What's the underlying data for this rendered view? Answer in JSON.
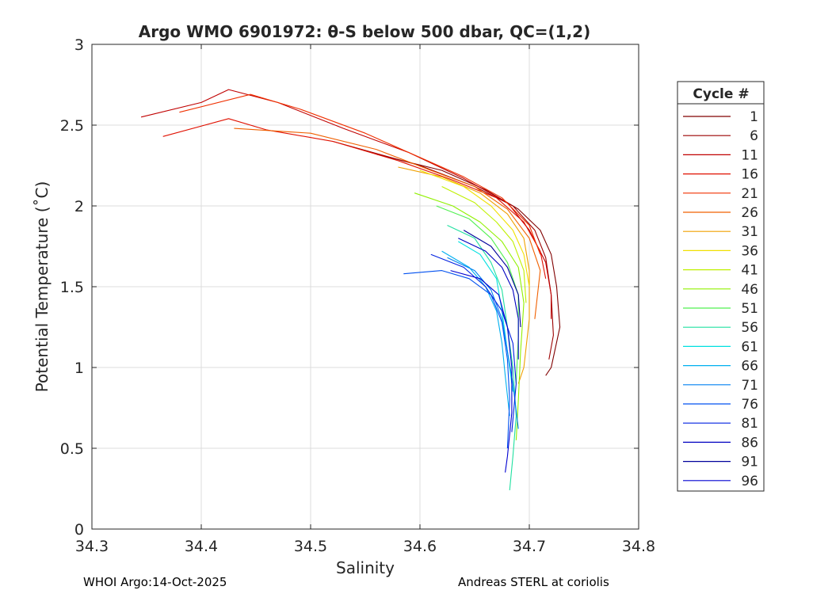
{
  "chart_data": {
    "type": "line",
    "title": "Argo WMO 6901972: θ-S below 500 dbar,  QC=(1,2)",
    "xlabel": "Salinity",
    "ylabel": "Potential Temperature (˚C)",
    "xlim": [
      34.3,
      34.8
    ],
    "ylim": [
      0,
      3
    ],
    "xticks": [
      "34.3",
      "34.4",
      "34.5",
      "34.6",
      "34.7",
      "34.8"
    ],
    "yticks": [
      "0",
      "0.5",
      "1",
      "1.5",
      "2",
      "2.5",
      "3"
    ],
    "grid": true,
    "legend": {
      "title": "Cycle #",
      "placement": "outside-right",
      "entries": [
        {
          "label": "1",
          "color": "#800000"
        },
        {
          "label": "6",
          "color": "#9b0000"
        },
        {
          "label": "11",
          "color": "#c00000"
        },
        {
          "label": "16",
          "color": "#e01000"
        },
        {
          "label": "21",
          "color": "#f03000"
        },
        {
          "label": "26",
          "color": "#f06000"
        },
        {
          "label": "31",
          "color": "#f0a000"
        },
        {
          "label": "36",
          "color": "#f0e000"
        },
        {
          "label": "41",
          "color": "#c0f000"
        },
        {
          "label": "46",
          "color": "#90f000"
        },
        {
          "label": "51",
          "color": "#50f050"
        },
        {
          "label": "56",
          "color": "#20e0a0"
        },
        {
          "label": "61",
          "color": "#00e0e0"
        },
        {
          "label": "66",
          "color": "#00b0f0"
        },
        {
          "label": "71",
          "color": "#0080f0"
        },
        {
          "label": "76",
          "color": "#0050f0"
        },
        {
          "label": "81",
          "color": "#0020e0"
        },
        {
          "label": "86",
          "color": "#0000c0"
        },
        {
          "label": "91",
          "color": "#00009b"
        },
        {
          "label": "96",
          "color": "#0000d0"
        }
      ]
    },
    "series": [
      {
        "name": "1",
        "color": "#800000",
        "points": [
          [
            34.56,
            2.32
          ],
          [
            34.62,
            2.22
          ],
          [
            34.66,
            2.1
          ],
          [
            34.69,
            1.98
          ],
          [
            34.71,
            1.85
          ],
          [
            34.72,
            1.7
          ],
          [
            34.725,
            1.5
          ],
          [
            34.728,
            1.25
          ],
          [
            34.72,
            1.0
          ],
          [
            34.715,
            0.95
          ]
        ]
      },
      {
        "name": "6",
        "color": "#9b0000",
        "points": [
          [
            34.52,
            2.4
          ],
          [
            34.6,
            2.25
          ],
          [
            34.65,
            2.12
          ],
          [
            34.685,
            2.0
          ],
          [
            34.705,
            1.85
          ],
          [
            34.715,
            1.68
          ],
          [
            34.72,
            1.45
          ],
          [
            34.722,
            1.2
          ],
          [
            34.718,
            1.05
          ]
        ]
      },
      {
        "name": "11",
        "color": "#c00000",
        "points": [
          [
            34.345,
            2.55
          ],
          [
            34.4,
            2.64
          ],
          [
            34.425,
            2.72
          ],
          [
            34.47,
            2.64
          ],
          [
            34.53,
            2.48
          ],
          [
            34.59,
            2.33
          ],
          [
            34.64,
            2.17
          ],
          [
            34.68,
            2.02
          ],
          [
            34.7,
            1.85
          ],
          [
            34.715,
            1.65
          ],
          [
            34.72,
            1.45
          ],
          [
            34.72,
            1.3
          ]
        ]
      },
      {
        "name": "16",
        "color": "#e01000",
        "points": [
          [
            34.365,
            2.43
          ],
          [
            34.425,
            2.54
          ],
          [
            34.46,
            2.47
          ],
          [
            34.52,
            2.4
          ],
          [
            34.58,
            2.28
          ],
          [
            34.63,
            2.16
          ],
          [
            34.67,
            2.05
          ],
          [
            34.695,
            1.9
          ],
          [
            34.71,
            1.72
          ],
          [
            34.715,
            1.55
          ]
        ]
      },
      {
        "name": "21",
        "color": "#f03000",
        "points": [
          [
            34.38,
            2.58
          ],
          [
            34.445,
            2.69
          ],
          [
            34.49,
            2.6
          ],
          [
            34.55,
            2.45
          ],
          [
            34.6,
            2.3
          ],
          [
            34.64,
            2.18
          ],
          [
            34.675,
            2.05
          ],
          [
            34.7,
            1.88
          ],
          [
            34.71,
            1.7
          ]
        ]
      },
      {
        "name": "26",
        "color": "#f06000",
        "points": [
          [
            34.43,
            2.48
          ],
          [
            34.5,
            2.45
          ],
          [
            34.56,
            2.35
          ],
          [
            34.61,
            2.22
          ],
          [
            34.65,
            2.12
          ],
          [
            34.68,
            1.98
          ],
          [
            34.7,
            1.8
          ],
          [
            34.71,
            1.6
          ],
          [
            34.705,
            1.3
          ]
        ]
      },
      {
        "name": "31",
        "color": "#f0a000",
        "points": [
          [
            34.58,
            2.24
          ],
          [
            34.62,
            2.18
          ],
          [
            34.655,
            2.08
          ],
          [
            34.68,
            1.95
          ],
          [
            34.695,
            1.8
          ],
          [
            34.7,
            1.6
          ],
          [
            34.7,
            1.3
          ],
          [
            34.695,
            1.0
          ],
          [
            34.69,
            0.9
          ]
        ]
      },
      {
        "name": "36",
        "color": "#f0e000",
        "points": [
          [
            34.6,
            2.22
          ],
          [
            34.64,
            2.12
          ],
          [
            34.665,
            2.0
          ],
          [
            34.685,
            1.85
          ],
          [
            34.695,
            1.7
          ],
          [
            34.7,
            1.5
          ]
        ]
      },
      {
        "name": "41",
        "color": "#c0f000",
        "points": [
          [
            34.62,
            2.12
          ],
          [
            34.65,
            2.02
          ],
          [
            34.67,
            1.9
          ],
          [
            34.685,
            1.78
          ],
          [
            34.695,
            1.6
          ],
          [
            34.697,
            1.4
          ]
        ]
      },
      {
        "name": "46",
        "color": "#90f000",
        "points": [
          [
            34.595,
            2.08
          ],
          [
            34.63,
            2.0
          ],
          [
            34.655,
            1.9
          ],
          [
            34.675,
            1.78
          ],
          [
            34.69,
            1.62
          ],
          [
            34.695,
            1.4
          ],
          [
            34.692,
            1.1
          ],
          [
            34.69,
            0.8
          ],
          [
            34.688,
            0.55
          ]
        ]
      },
      {
        "name": "51",
        "color": "#50f050",
        "points": [
          [
            34.615,
            2.0
          ],
          [
            34.645,
            1.92
          ],
          [
            34.665,
            1.8
          ],
          [
            34.68,
            1.65
          ],
          [
            34.69,
            1.45
          ],
          [
            34.69,
            1.2
          ],
          [
            34.688,
            0.9
          ]
        ]
      },
      {
        "name": "56",
        "color": "#20e0a0",
        "points": [
          [
            34.625,
            1.88
          ],
          [
            34.65,
            1.8
          ],
          [
            34.665,
            1.65
          ],
          [
            34.675,
            1.48
          ],
          [
            34.68,
            1.25
          ],
          [
            34.685,
            1.0
          ],
          [
            34.688,
            0.7
          ],
          [
            34.685,
            0.45
          ],
          [
            34.682,
            0.24
          ]
        ]
      },
      {
        "name": "61",
        "color": "#00e0e0",
        "points": [
          [
            34.635,
            1.78
          ],
          [
            34.655,
            1.7
          ],
          [
            34.67,
            1.55
          ],
          [
            34.675,
            1.35
          ],
          [
            34.68,
            1.1
          ],
          [
            34.685,
            0.85
          ]
        ]
      },
      {
        "name": "66",
        "color": "#00b0f0",
        "points": [
          [
            34.62,
            1.72
          ],
          [
            34.645,
            1.62
          ],
          [
            34.66,
            1.5
          ],
          [
            34.67,
            1.35
          ],
          [
            34.675,
            1.15
          ],
          [
            34.678,
            0.95
          ],
          [
            34.682,
            0.7
          ]
        ]
      },
      {
        "name": "71",
        "color": "#0080f0",
        "points": [
          [
            34.625,
            1.68
          ],
          [
            34.65,
            1.6
          ],
          [
            34.665,
            1.48
          ],
          [
            34.675,
            1.3
          ],
          [
            34.68,
            1.1
          ],
          [
            34.685,
            0.9
          ],
          [
            34.69,
            0.62
          ]
        ]
      },
      {
        "name": "76",
        "color": "#0050f0",
        "points": [
          [
            34.585,
            1.58
          ],
          [
            34.62,
            1.6
          ],
          [
            34.645,
            1.55
          ],
          [
            34.665,
            1.45
          ],
          [
            34.675,
            1.28
          ],
          [
            34.68,
            1.05
          ],
          [
            34.682,
            0.8
          ],
          [
            34.68,
            0.5
          ]
        ]
      },
      {
        "name": "81",
        "color": "#0020e0",
        "points": [
          [
            34.61,
            1.7
          ],
          [
            34.64,
            1.62
          ],
          [
            34.66,
            1.5
          ],
          [
            34.675,
            1.35
          ],
          [
            34.685,
            1.15
          ],
          [
            34.688,
            0.9
          ],
          [
            34.684,
            0.6
          ]
        ]
      },
      {
        "name": "86",
        "color": "#0000c0",
        "points": [
          [
            34.635,
            1.8
          ],
          [
            34.66,
            1.72
          ],
          [
            34.675,
            1.62
          ],
          [
            34.685,
            1.48
          ],
          [
            34.69,
            1.3
          ],
          [
            34.69,
            1.05
          ]
        ]
      },
      {
        "name": "91",
        "color": "#00009b",
        "points": [
          [
            34.64,
            1.85
          ],
          [
            34.665,
            1.75
          ],
          [
            34.68,
            1.62
          ],
          [
            34.69,
            1.45
          ],
          [
            34.692,
            1.25
          ]
        ]
      },
      {
        "name": "96",
        "color": "#0000d0",
        "points": [
          [
            34.628,
            1.6
          ],
          [
            34.655,
            1.55
          ],
          [
            34.672,
            1.45
          ],
          [
            34.68,
            1.25
          ],
          [
            34.684,
            1.0
          ],
          [
            34.684,
            0.72
          ],
          [
            34.68,
            0.45
          ],
          [
            34.678,
            0.35
          ]
        ]
      }
    ]
  },
  "footer": {
    "left": "WHOI Argo:14-Oct-2025",
    "right": "Andreas STERL at coriolis"
  }
}
